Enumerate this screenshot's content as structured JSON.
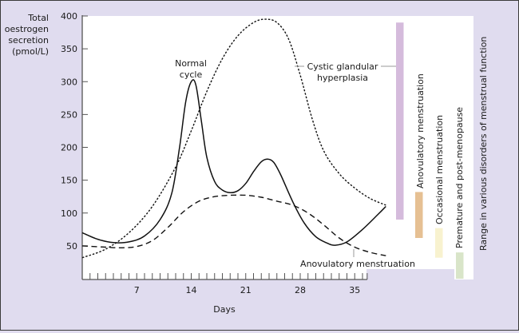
{
  "chart_data": {
    "type": "line",
    "title": "",
    "ylabel_lines": [
      "Total",
      "oestrogen",
      "secretion",
      "(pmol/L)"
    ],
    "xlabel": "Days",
    "xlim": [
      0,
      39
    ],
    "ylim": [
      0,
      400
    ],
    "x_ticks": [
      7,
      14,
      21,
      28,
      35
    ],
    "x_minor_tick_step": 1,
    "y_ticks": [
      50,
      100,
      150,
      200,
      250,
      300,
      350,
      400
    ],
    "grid": false,
    "series": [
      {
        "name": "Normal cycle",
        "style": "solid",
        "color": "#111111",
        "points": [
          [
            0,
            70
          ],
          [
            2,
            60
          ],
          [
            4,
            55
          ],
          [
            6,
            56
          ],
          [
            8,
            65
          ],
          [
            10,
            90
          ],
          [
            11.5,
            130
          ],
          [
            12.5,
            200
          ],
          [
            13.3,
            270
          ],
          [
            14,
            300
          ],
          [
            14.6,
            295
          ],
          [
            15.3,
            240
          ],
          [
            16,
            185
          ],
          [
            17,
            148
          ],
          [
            18,
            135
          ],
          [
            19,
            131
          ],
          [
            20,
            134
          ],
          [
            21,
            145
          ],
          [
            22,
            163
          ],
          [
            23,
            178
          ],
          [
            23.8,
            182
          ],
          [
            24.6,
            177
          ],
          [
            25.5,
            158
          ],
          [
            27,
            118
          ],
          [
            28.5,
            85
          ],
          [
            30,
            64
          ],
          [
            31.5,
            54
          ],
          [
            32.5,
            51
          ],
          [
            34,
            56
          ],
          [
            36,
            75
          ],
          [
            38,
            98
          ],
          [
            39,
            110
          ]
        ]
      },
      {
        "name": "Cystic glandular hyperplasia",
        "style": "dotted",
        "color": "#111111",
        "points": [
          [
            0,
            32
          ],
          [
            3,
            45
          ],
          [
            6,
            70
          ],
          [
            9,
            110
          ],
          [
            12,
            170
          ],
          [
            14,
            225
          ],
          [
            16,
            285
          ],
          [
            18,
            335
          ],
          [
            20,
            370
          ],
          [
            22,
            390
          ],
          [
            23.5,
            395
          ],
          [
            25,
            390
          ],
          [
            26.5,
            365
          ],
          [
            28,
            310
          ],
          [
            29.5,
            245
          ],
          [
            31,
            195
          ],
          [
            33,
            160
          ],
          [
            35,
            138
          ],
          [
            37,
            122
          ],
          [
            39,
            112
          ]
        ]
      },
      {
        "name": "Anovulatory menstruation",
        "style": "dashed",
        "color": "#111111",
        "points": [
          [
            0,
            50
          ],
          [
            3,
            48
          ],
          [
            5,
            47
          ],
          [
            7,
            49
          ],
          [
            9,
            58
          ],
          [
            11,
            78
          ],
          [
            13,
            102
          ],
          [
            15,
            118
          ],
          [
            17,
            125
          ],
          [
            19,
            127
          ],
          [
            21,
            127
          ],
          [
            23,
            124
          ],
          [
            25,
            118
          ],
          [
            27,
            112
          ],
          [
            29,
            100
          ],
          [
            31,
            82
          ],
          [
            33,
            62
          ],
          [
            35,
            48
          ],
          [
            37,
            40
          ],
          [
            39,
            35
          ]
        ]
      }
    ],
    "annotations": [
      {
        "text_lines": [
          "Normal",
          "cycle"
        ],
        "target": "Normal cycle peak"
      },
      {
        "text_lines": [
          "Cystic glandular",
          "hyperplasia"
        ],
        "target": "Cystic glandular hyperplasia curve"
      },
      {
        "text_lines": [
          "Anovulatory menstruation"
        ],
        "target": "Anovulatory menstruation curve"
      }
    ],
    "range_bars": [
      {
        "label": "Cystic glandular hyperplasia",
        "range": [
          90,
          390
        ],
        "color": "#d5bbdc"
      },
      {
        "label": "Anovulatory menstruation",
        "range": [
          62,
          132
        ],
        "color": "#e6c093"
      },
      {
        "label": "Occasional menstruation",
        "range": [
          32,
          77
        ],
        "color": "#f8f2cf"
      },
      {
        "label": "Premature and post-menopause",
        "range": [
          0,
          40
        ],
        "color": "#d9e5c9"
      }
    ],
    "range_bars_title": "Range in various disorders of menstrual function"
  },
  "colors": {
    "background": "#e0dcef",
    "plot_background": "#ffffff",
    "axis": "#555555",
    "leader_line": "#9a9a9a"
  }
}
